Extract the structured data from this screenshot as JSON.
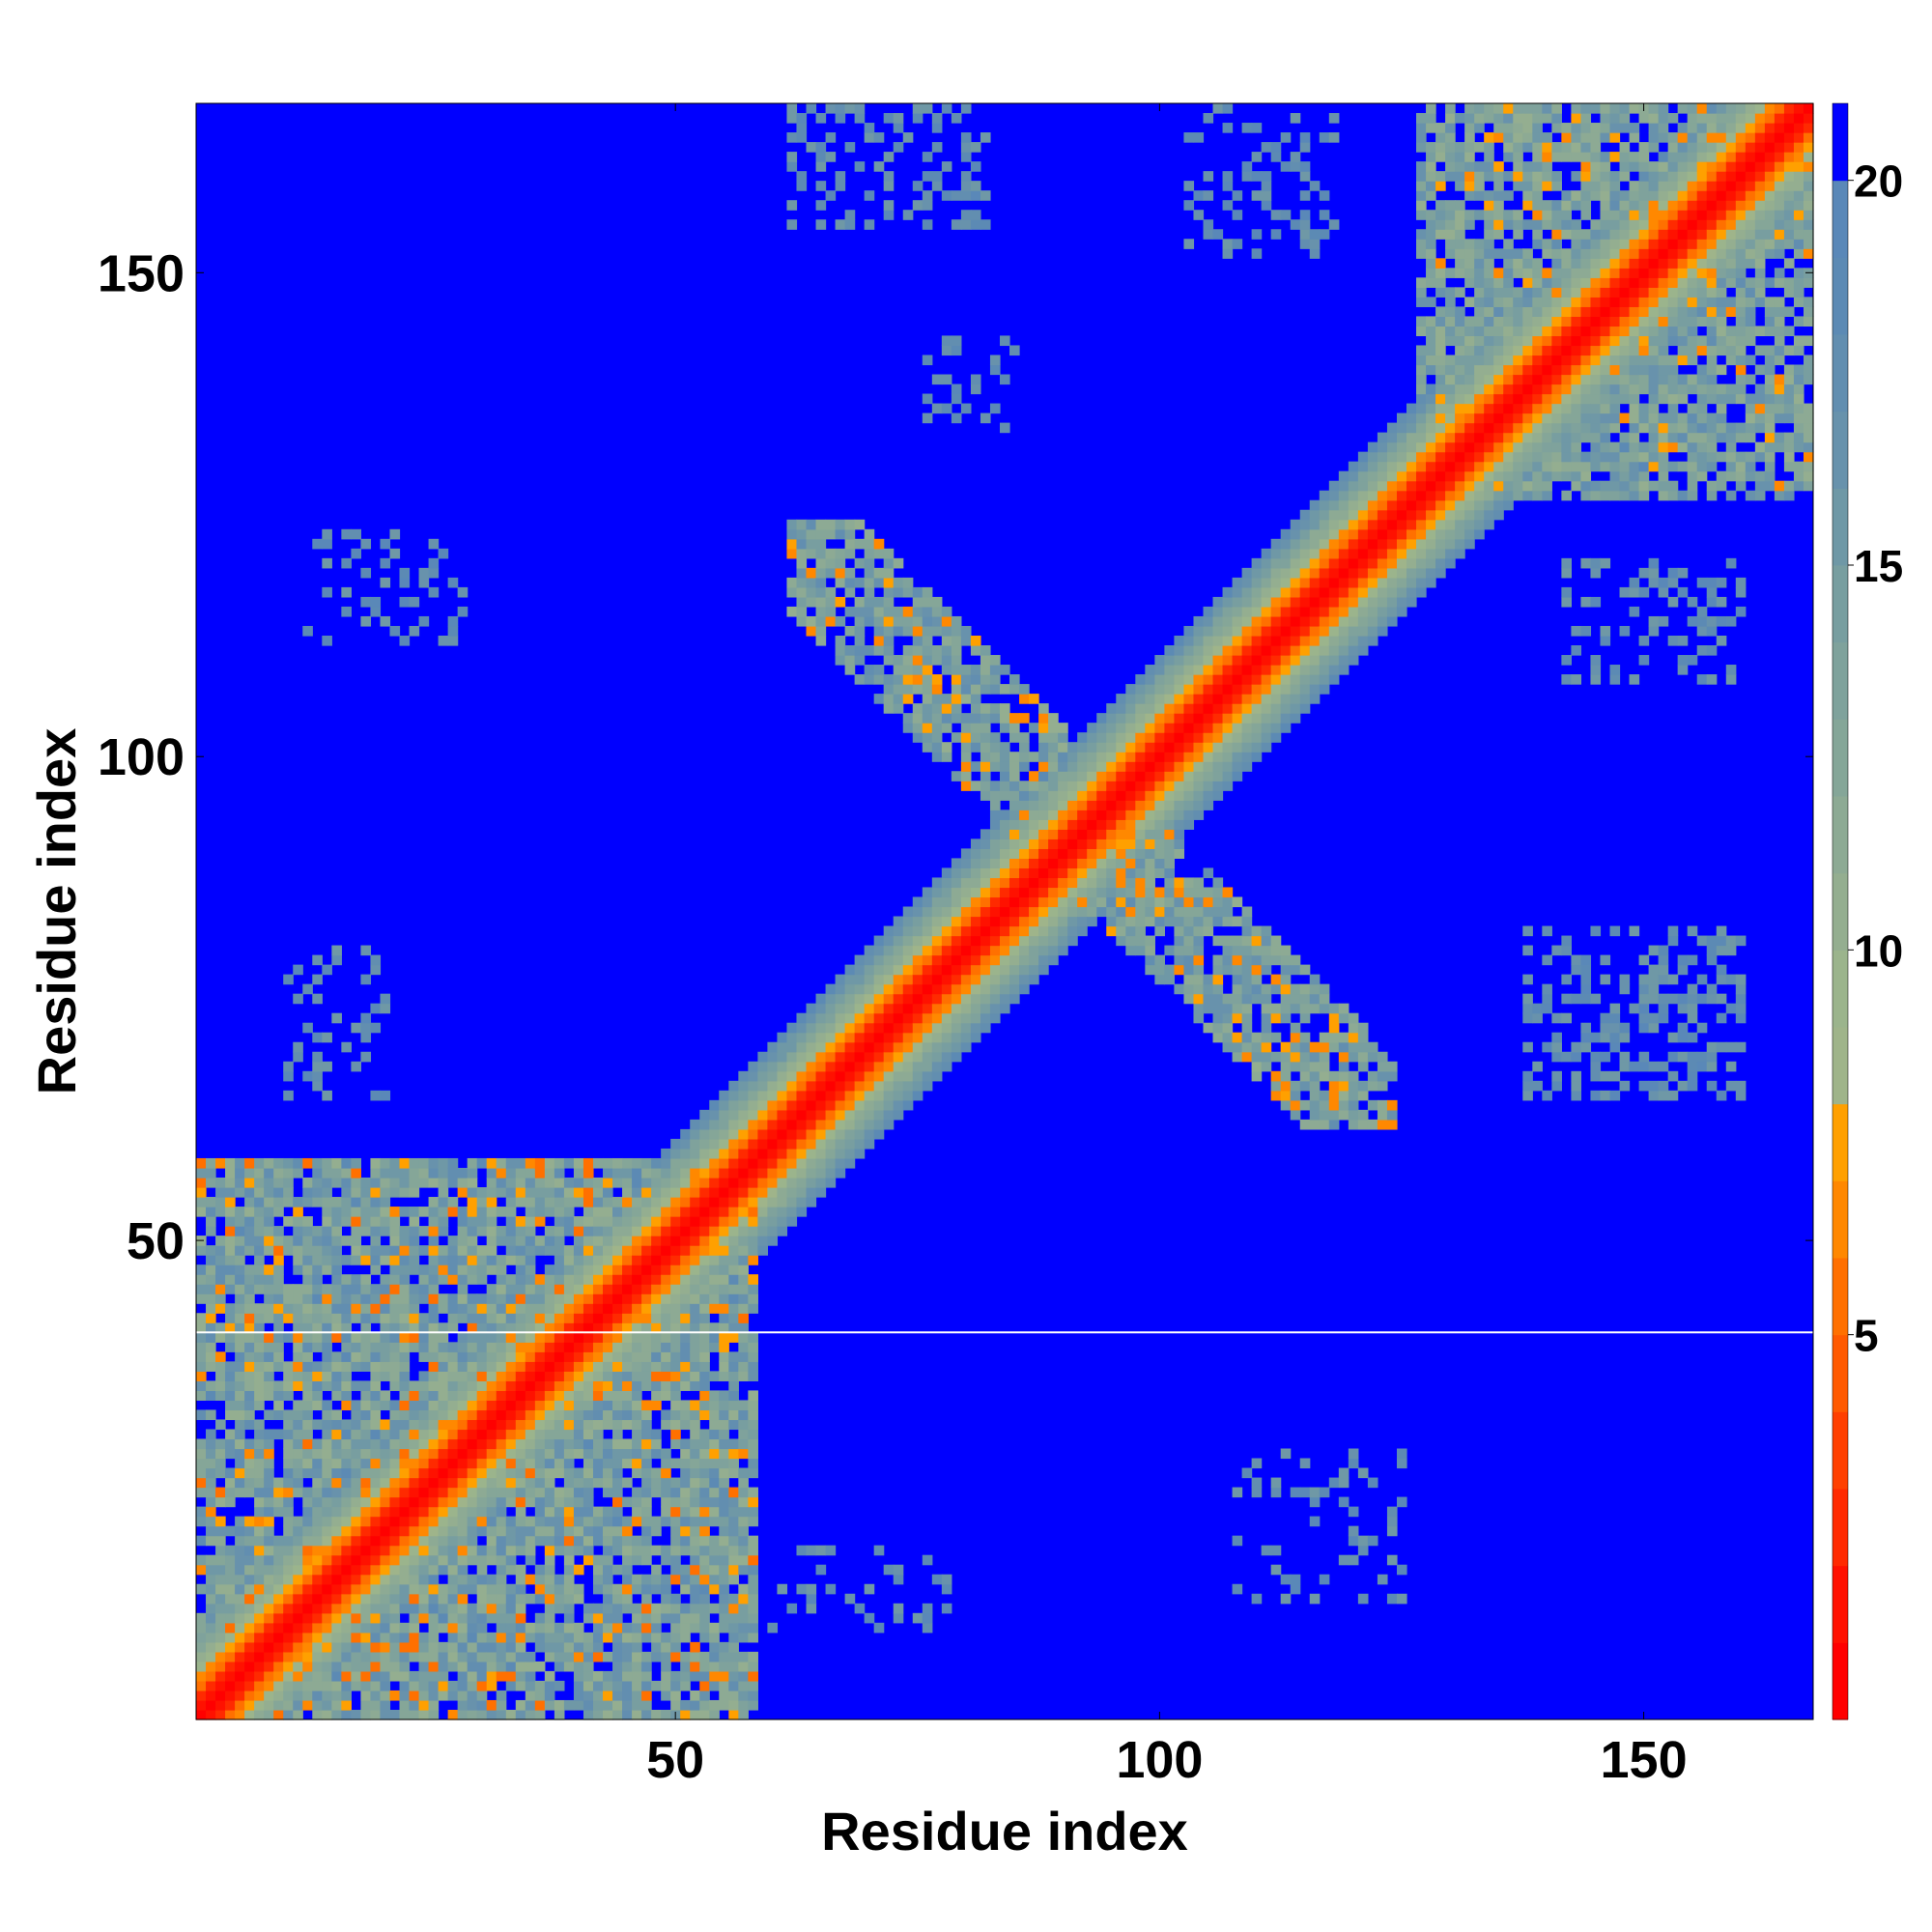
{
  "chart_data": {
    "type": "heatmap",
    "title": "",
    "xlabel": "Residue index",
    "ylabel": "Residue index",
    "n_residues": 167,
    "xlim": [
      0.5,
      167.5
    ],
    "ylim": [
      0.5,
      167.5
    ],
    "x_ticks": [
      50,
      100,
      150
    ],
    "y_ticks": [
      50,
      100,
      150
    ],
    "x_tick_labels": [
      "50",
      "100",
      "150"
    ],
    "y_tick_labels": [
      "50",
      "100",
      "150"
    ],
    "colorbar": {
      "range": [
        0,
        21
      ],
      "ticks": [
        5,
        10,
        15,
        20
      ],
      "tick_labels": [
        "5",
        "10",
        "15",
        "20"
      ],
      "levels": [
        {
          "min": 0,
          "max": 1,
          "color": "#ff0000"
        },
        {
          "min": 1,
          "max": 2,
          "color": "#ff1100"
        },
        {
          "min": 2,
          "max": 3,
          "color": "#ff2a00"
        },
        {
          "min": 3,
          "max": 4,
          "color": "#ff4000"
        },
        {
          "min": 4,
          "max": 5,
          "color": "#ff5a00"
        },
        {
          "min": 5,
          "max": 6,
          "color": "#ff7000"
        },
        {
          "min": 6,
          "max": 7,
          "color": "#ff8800"
        },
        {
          "min": 7,
          "max": 8,
          "color": "#ffa000"
        },
        {
          "min": 8,
          "max": 9,
          "color": "#9fb48a"
        },
        {
          "min": 9,
          "max": 10,
          "color": "#9bb48c"
        },
        {
          "min": 10,
          "max": 11,
          "color": "#94ae90"
        },
        {
          "min": 11,
          "max": 12,
          "color": "#8daa94"
        },
        {
          "min": 12,
          "max": 13,
          "color": "#85a698"
        },
        {
          "min": 13,
          "max": 14,
          "color": "#7fa29c"
        },
        {
          "min": 14,
          "max": 15,
          "color": "#789ea0"
        },
        {
          "min": 15,
          "max": 16,
          "color": "#6f98a6"
        },
        {
          "min": 16,
          "max": 17,
          "color": "#6892ac"
        },
        {
          "min": 17,
          "max": 18,
          "color": "#628eb0"
        },
        {
          "min": 18,
          "max": 19,
          "color": "#5c8ab4"
        },
        {
          "min": 19,
          "max": 20,
          "color": "#5a88b8"
        },
        {
          "min": 20,
          "max": 21,
          "color": "#0000ff"
        }
      ]
    },
    "gap_row": 40,
    "gap_color": "#ffffff",
    "background_color": "#0000ff",
    "contact_regions": [
      {
        "name": "main-diagonal",
        "x": [
          1,
          167
        ],
        "y": [
          1,
          167
        ]
      },
      {
        "name": "n-terminal-block",
        "x": [
          1,
          60
        ],
        "y": [
          1,
          60
        ]
      },
      {
        "name": "c-terminal-block",
        "x": [
          125,
          167
        ],
        "y": [
          125,
          167
        ]
      },
      {
        "name": "antiparallel-arm-upper",
        "x": [
          62,
          92
        ],
        "y": [
          92,
          123
        ]
      },
      {
        "name": "antiparallel-arm-lower",
        "x": [
          92,
          124
        ],
        "y": [
          62,
          92
        ]
      },
      {
        "name": "patch-top-mid",
        "x": [
          62,
          82
        ],
        "y": [
          155,
          167
        ]
      },
      {
        "name": "patch-top-right",
        "x": [
          103,
          118
        ],
        "y": [
          152,
          167
        ]
      },
      {
        "name": "patch-right-mid",
        "x": [
          142,
          160
        ],
        "y": [
          108,
          120
        ]
      },
      {
        "name": "patch-right-lower",
        "x": [
          138,
          160
        ],
        "y": [
          65,
          82
        ]
      },
      {
        "name": "patch-left-mid",
        "x": [
          12,
          28
        ],
        "y": [
          112,
          123
        ]
      },
      {
        "name": "patch-left-lower",
        "x": [
          10,
          20
        ],
        "y": [
          65,
          80
        ]
      },
      {
        "name": "patch-bottom-mid",
        "x": [
          108,
          125
        ],
        "y": [
          13,
          28
        ]
      },
      {
        "name": "patch-bottom-near",
        "x": [
          60,
          78
        ],
        "y": [
          10,
          18
        ]
      }
    ]
  }
}
